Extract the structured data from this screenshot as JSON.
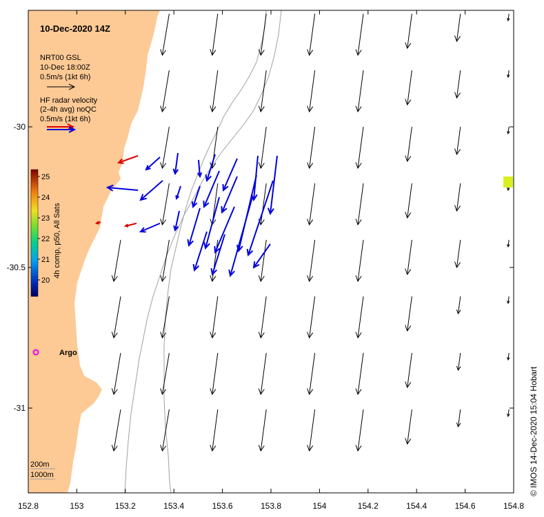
{
  "title": "10-Dec-2020 14Z",
  "model_legend": {
    "name": "NRT00 GSL",
    "time": "10-Dec 18:00Z",
    "scale": "0.5m/s (1kt 6h)"
  },
  "radar_legend": {
    "line1": "HF radar velocity",
    "line2": "(2-4h avg) noQC",
    "scale": "0.5m/s (1kt 6h)"
  },
  "colorbar": {
    "label": "4h comp, p50, All Sats",
    "ticks": [
      "20",
      "21",
      "22",
      "23",
      "24",
      "25"
    ]
  },
  "argo_label": "Argo",
  "depth_legend": {
    "line1": "200m",
    "line2": "1000m"
  },
  "credit": "© IMOS 14-Dec-2020 15:04 Hobart",
  "colors": {
    "land": "#fdc994",
    "model_arrow": "#000000",
    "radar_arrow": "#0000dd",
    "radar_red": "#dd0000",
    "argo": "#ee00ee",
    "sst_patch": "#d8f020",
    "isobath": "#a0a0a0"
  },
  "axes": {
    "x_ticks": [
      "152.8",
      "153",
      "153.2",
      "153.4",
      "153.6",
      "153.8",
      "154",
      "154.2",
      "154.4",
      "154.6",
      "154.8"
    ],
    "y_ticks": [
      "-30",
      "-30.5",
      "-31"
    ],
    "lon_range": [
      152.8,
      154.8
    ],
    "lat_range": [
      -31.29,
      -29.59
    ]
  }
}
